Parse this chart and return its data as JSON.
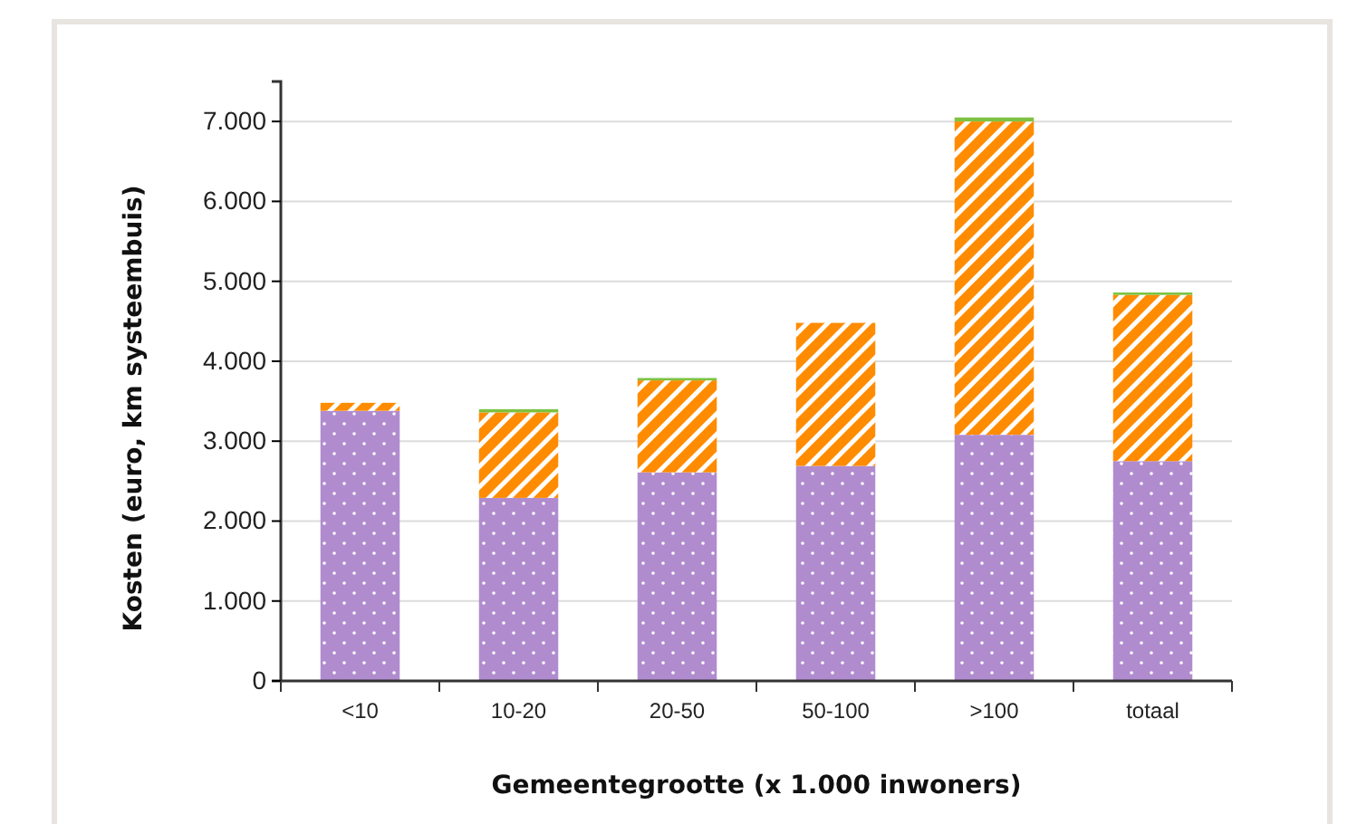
{
  "chart_data": {
    "type": "bar",
    "stacked": true,
    "xlabel": "Gemeentegrootte (x 1.000 inwoners)",
    "ylabel": "Kosten (euro, km systeembuis)",
    "categories": [
      "<10",
      "10-20",
      "20-50",
      "50-100",
      ">100",
      "totaal"
    ],
    "series": [
      {
        "color": "#b08ccf",
        "values": [
          3380,
          2290,
          2610,
          2690,
          3080,
          2750
        ]
      },
      {
        "color": "#ff8c00",
        "values": [
          100,
          1070,
          1150,
          1790,
          3920,
          2080
        ]
      },
      {
        "color": "#7dc242",
        "values": [
          null,
          40,
          30,
          null,
          50,
          30
        ]
      }
    ],
    "ylim": [
      0,
      7500
    ],
    "yticks": [
      {
        "value": 0,
        "label": "0"
      },
      {
        "value": 1000,
        "label": "1.000"
      },
      {
        "value": 2000,
        "label": "2.000"
      },
      {
        "value": 3000,
        "label": "3.000"
      },
      {
        "value": 4000,
        "label": "4.000"
      },
      {
        "value": 5000,
        "label": "5.000"
      },
      {
        "value": 6000,
        "label": "6.000"
      },
      {
        "value": 7000,
        "label": "7.000"
      }
    ],
    "grid": "y"
  }
}
